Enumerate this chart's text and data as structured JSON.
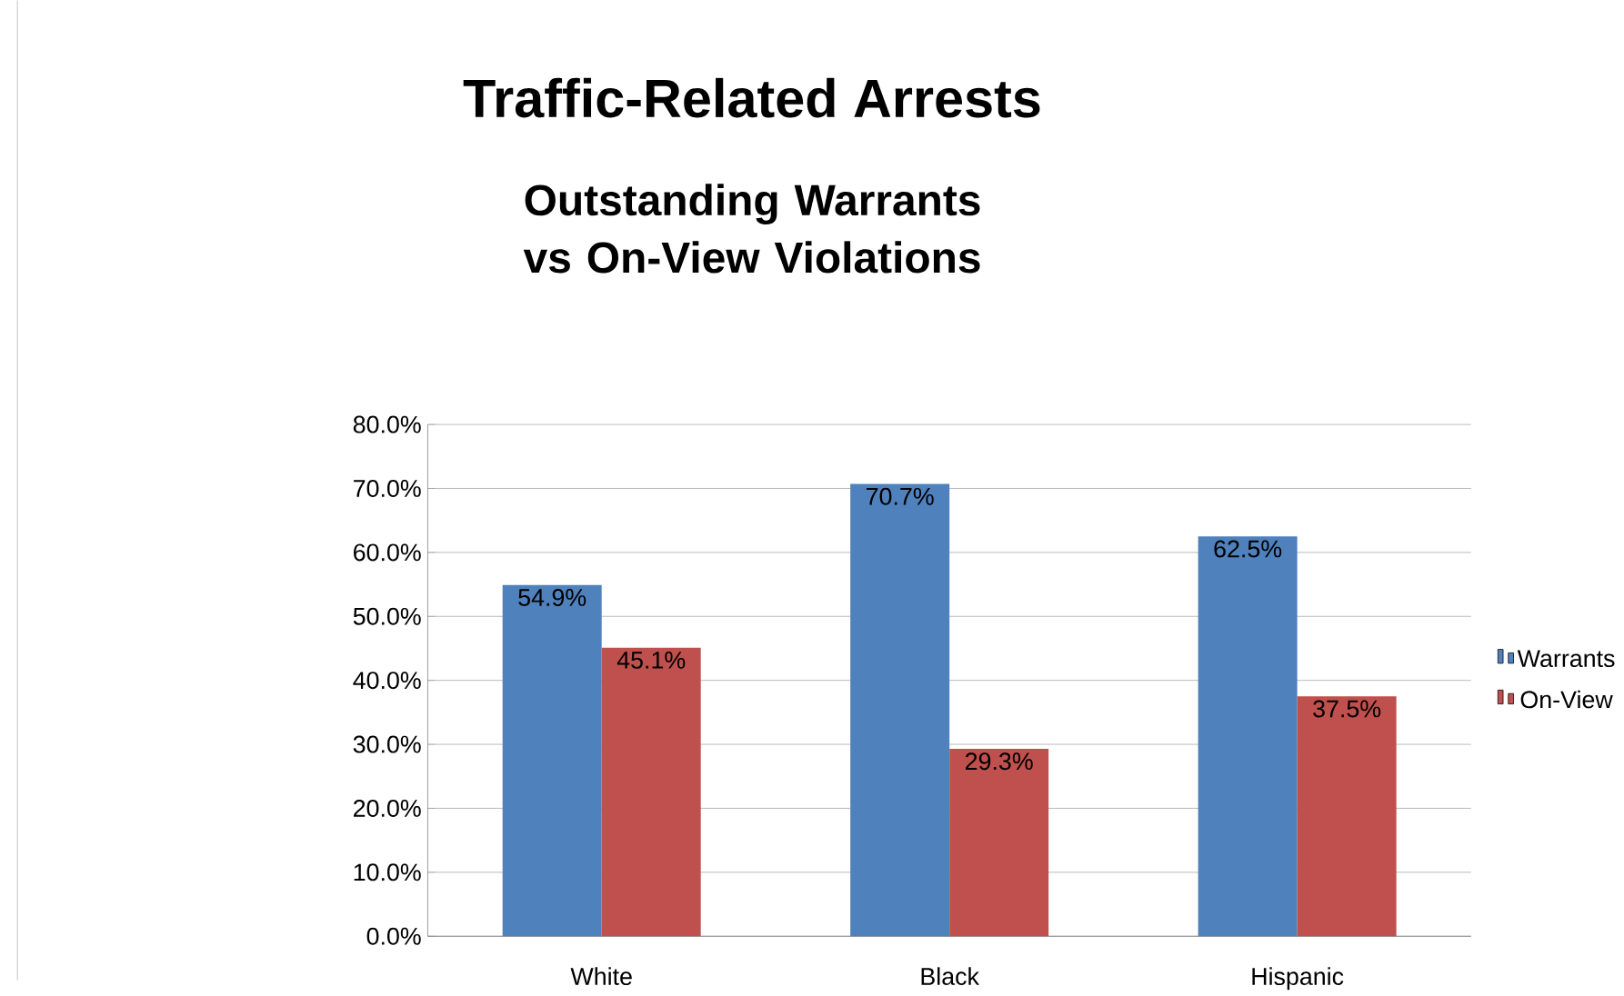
{
  "chart_data": {
    "type": "bar",
    "title": "Traffic-Related Arrests",
    "subtitle": "Outstanding Warrants vs On-View Violations",
    "categories": [
      "White",
      "Black",
      "Hispanic"
    ],
    "series": [
      {
        "name": "Warrants",
        "color": "#4f81bd",
        "values": [
          54.9,
          70.7,
          62.5
        ],
        "value_labels": [
          "54.9%",
          "70.7%",
          "62.5%"
        ]
      },
      {
        "name": "On-View",
        "color": "#c0504d",
        "values": [
          45.1,
          29.3,
          37.5
        ],
        "value_labels": [
          "45.1%",
          "29.3%",
          "37.5%"
        ]
      }
    ],
    "ylim": [
      0,
      80
    ],
    "yticks": [
      {
        "value": 0,
        "label": "0.0%"
      },
      {
        "value": 10,
        "label": "10.0%"
      },
      {
        "value": 20,
        "label": "20.0%"
      },
      {
        "value": 30,
        "label": "30.0%"
      },
      {
        "value": 40,
        "label": "40.0%"
      },
      {
        "value": 50,
        "label": "50.0%"
      },
      {
        "value": 60,
        "label": "60.0%"
      },
      {
        "value": 70,
        "label": "70.0%"
      },
      {
        "value": 80,
        "label": "80.0%"
      }
    ],
    "grid": "y",
    "legend": "right"
  }
}
